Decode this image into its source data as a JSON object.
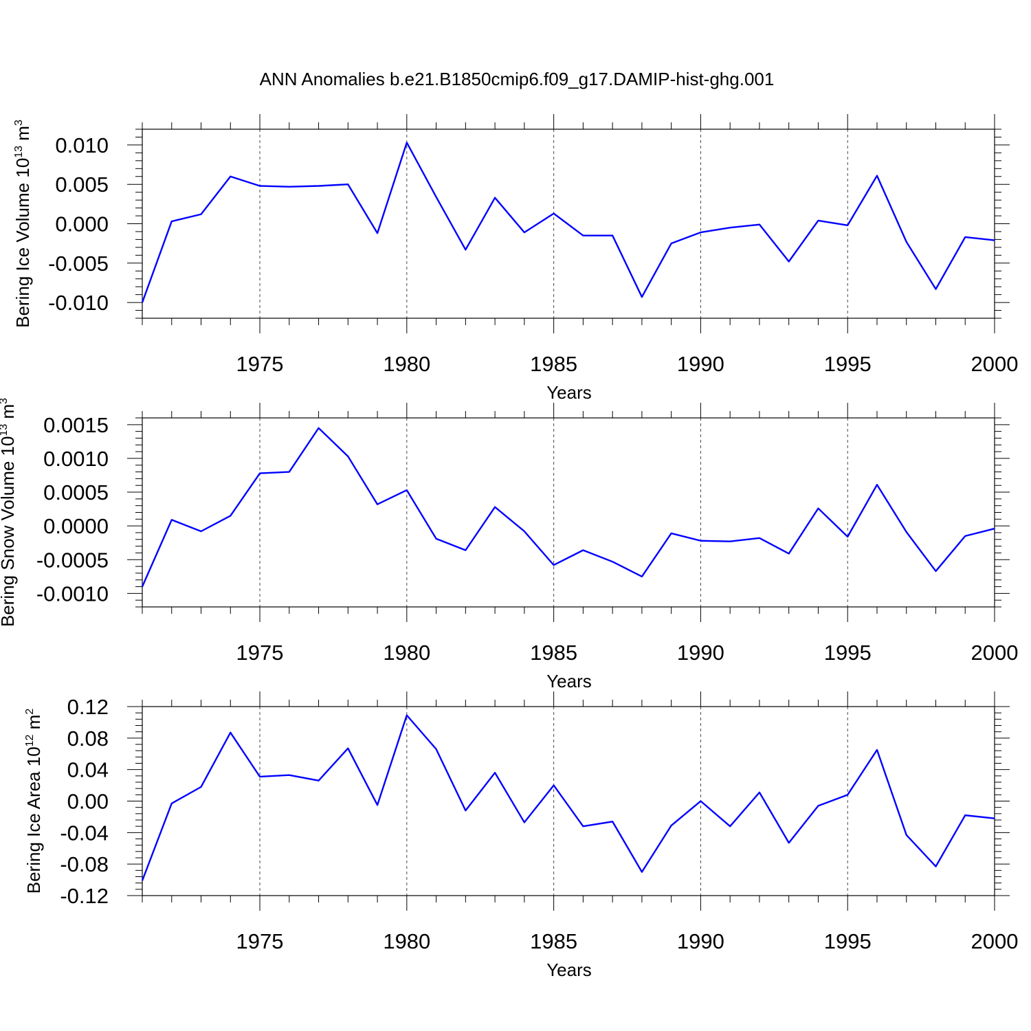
{
  "figure": {
    "title": "ANN Anomalies b.e21.B1850cmip6.f09_g17.DAMIP-hist-ghg.001"
  },
  "colors": {
    "line": "#0000ff",
    "axis": "#000000",
    "grid": "#444444"
  },
  "chart_data": [
    {
      "type": "line",
      "title": "ANN Anomalies b.e21.B1850cmip6.f09_g17.DAMIP-hist-ghg.001",
      "xlabel": "Years",
      "ylabel": {
        "main": "Bering Ice Volume 10",
        "exp": "13",
        "unit": " m",
        "unit_exp": "3"
      },
      "xlim": [
        1971,
        2000
      ],
      "ylim": [
        -0.012,
        0.012
      ],
      "xticks": [
        1975,
        1980,
        1985,
        1990,
        1995,
        2000
      ],
      "xtick_labels": [
        "1975",
        "1980",
        "1985",
        "1990",
        "1995",
        "2000"
      ],
      "yticks": [
        -0.01,
        -0.005,
        0.0,
        0.005,
        0.01
      ],
      "ytick_labels": [
        "-0.010",
        "-0.005",
        "0.000",
        "0.005",
        "0.010"
      ],
      "grid": "vertical dashed at major x ticks",
      "x": [
        1971,
        1972,
        1973,
        1974,
        1975,
        1976,
        1977,
        1978,
        1979,
        1980,
        1981,
        1982,
        1983,
        1984,
        1985,
        1986,
        1987,
        1988,
        1989,
        1990,
        1991,
        1992,
        1993,
        1994,
        1995,
        1996,
        1997,
        1998,
        1999,
        2000
      ],
      "series": [
        {
          "name": "Bering Ice Volume",
          "values": [
            -0.01,
            0.0003,
            0.0012,
            0.006,
            0.0048,
            0.0047,
            0.0048,
            0.005,
            -0.0012,
            0.0103,
            0.0034,
            -0.0033,
            0.0033,
            -0.0011,
            0.0013,
            -0.0015,
            -0.0015,
            -0.0093,
            -0.0025,
            -0.0011,
            -0.0005,
            -0.0001,
            -0.0048,
            0.0004,
            -0.0002,
            0.0061,
            -0.0023,
            -0.0083,
            -0.0017,
            -0.0021
          ]
        }
      ]
    },
    {
      "type": "line",
      "xlabel": "Years",
      "ylabel": {
        "main": "Bering Snow Volume 10",
        "exp": "13",
        "unit": " m",
        "unit_exp": "3"
      },
      "xlim": [
        1971,
        2000
      ],
      "ylim": [
        -0.0012,
        0.0016
      ],
      "xticks": [
        1975,
        1980,
        1985,
        1990,
        1995,
        2000
      ],
      "xtick_labels": [
        "1975",
        "1980",
        "1985",
        "1990",
        "1995",
        "2000"
      ],
      "yticks": [
        -0.001,
        -0.0005,
        0.0,
        0.0005,
        0.001,
        0.0015
      ],
      "ytick_labels": [
        "-0.0010",
        "-0.0005",
        "0.0000",
        "0.0005",
        "0.0010",
        "0.0015"
      ],
      "grid": "vertical dashed at major x ticks",
      "x": [
        1971,
        1972,
        1973,
        1974,
        1975,
        1976,
        1977,
        1978,
        1979,
        1980,
        1981,
        1982,
        1983,
        1984,
        1985,
        1986,
        1987,
        1988,
        1989,
        1990,
        1991,
        1992,
        1993,
        1994,
        1995,
        1996,
        1997,
        1998,
        1999,
        2000
      ],
      "series": [
        {
          "name": "Bering Snow Volume",
          "values": [
            -0.0009,
            9e-05,
            -8e-05,
            0.00015,
            0.00078,
            0.0008,
            0.00145,
            0.00103,
            0.00032,
            0.00053,
            -0.00019,
            -0.00036,
            0.00028,
            -8e-05,
            -0.00058,
            -0.00036,
            -0.00053,
            -0.00075,
            -0.00011,
            -0.00022,
            -0.00023,
            -0.00018,
            -0.00041,
            0.00026,
            -0.00016,
            0.00061,
            -9e-05,
            -0.00067,
            -0.00015,
            -4e-05
          ]
        }
      ]
    },
    {
      "type": "line",
      "xlabel": "Years",
      "ylabel": {
        "main": "Bering Ice Area 10",
        "exp": "12",
        "unit": " m",
        "unit_exp": "2"
      },
      "xlim": [
        1971,
        2000
      ],
      "ylim": [
        -0.12,
        0.12
      ],
      "xticks": [
        1975,
        1980,
        1985,
        1990,
        1995,
        2000
      ],
      "xtick_labels": [
        "1975",
        "1980",
        "1985",
        "1990",
        "1995",
        "2000"
      ],
      "yticks": [
        -0.12,
        -0.08,
        -0.04,
        0.0,
        0.04,
        0.08,
        0.12
      ],
      "ytick_labels": [
        "-0.12",
        "-0.08",
        "-0.04",
        "0.00",
        "0.04",
        "0.08",
        "0.12"
      ],
      "grid": "vertical dashed at major x ticks",
      "x": [
        1971,
        1972,
        1973,
        1974,
        1975,
        1976,
        1977,
        1978,
        1979,
        1980,
        1981,
        1982,
        1983,
        1984,
        1985,
        1986,
        1987,
        1988,
        1989,
        1990,
        1991,
        1992,
        1993,
        1994,
        1995,
        1996,
        1997,
        1998,
        1999,
        2000
      ],
      "series": [
        {
          "name": "Bering Ice Area",
          "values": [
            -0.101,
            -0.003,
            0.018,
            0.087,
            0.031,
            0.033,
            0.026,
            0.067,
            -0.005,
            0.109,
            0.066,
            -0.012,
            0.036,
            -0.027,
            0.02,
            -0.032,
            -0.026,
            -0.09,
            -0.031,
            0.0,
            -0.032,
            0.011,
            -0.053,
            -0.006,
            0.008,
            0.065,
            -0.043,
            -0.083,
            -0.018,
            -0.022
          ]
        }
      ]
    }
  ]
}
